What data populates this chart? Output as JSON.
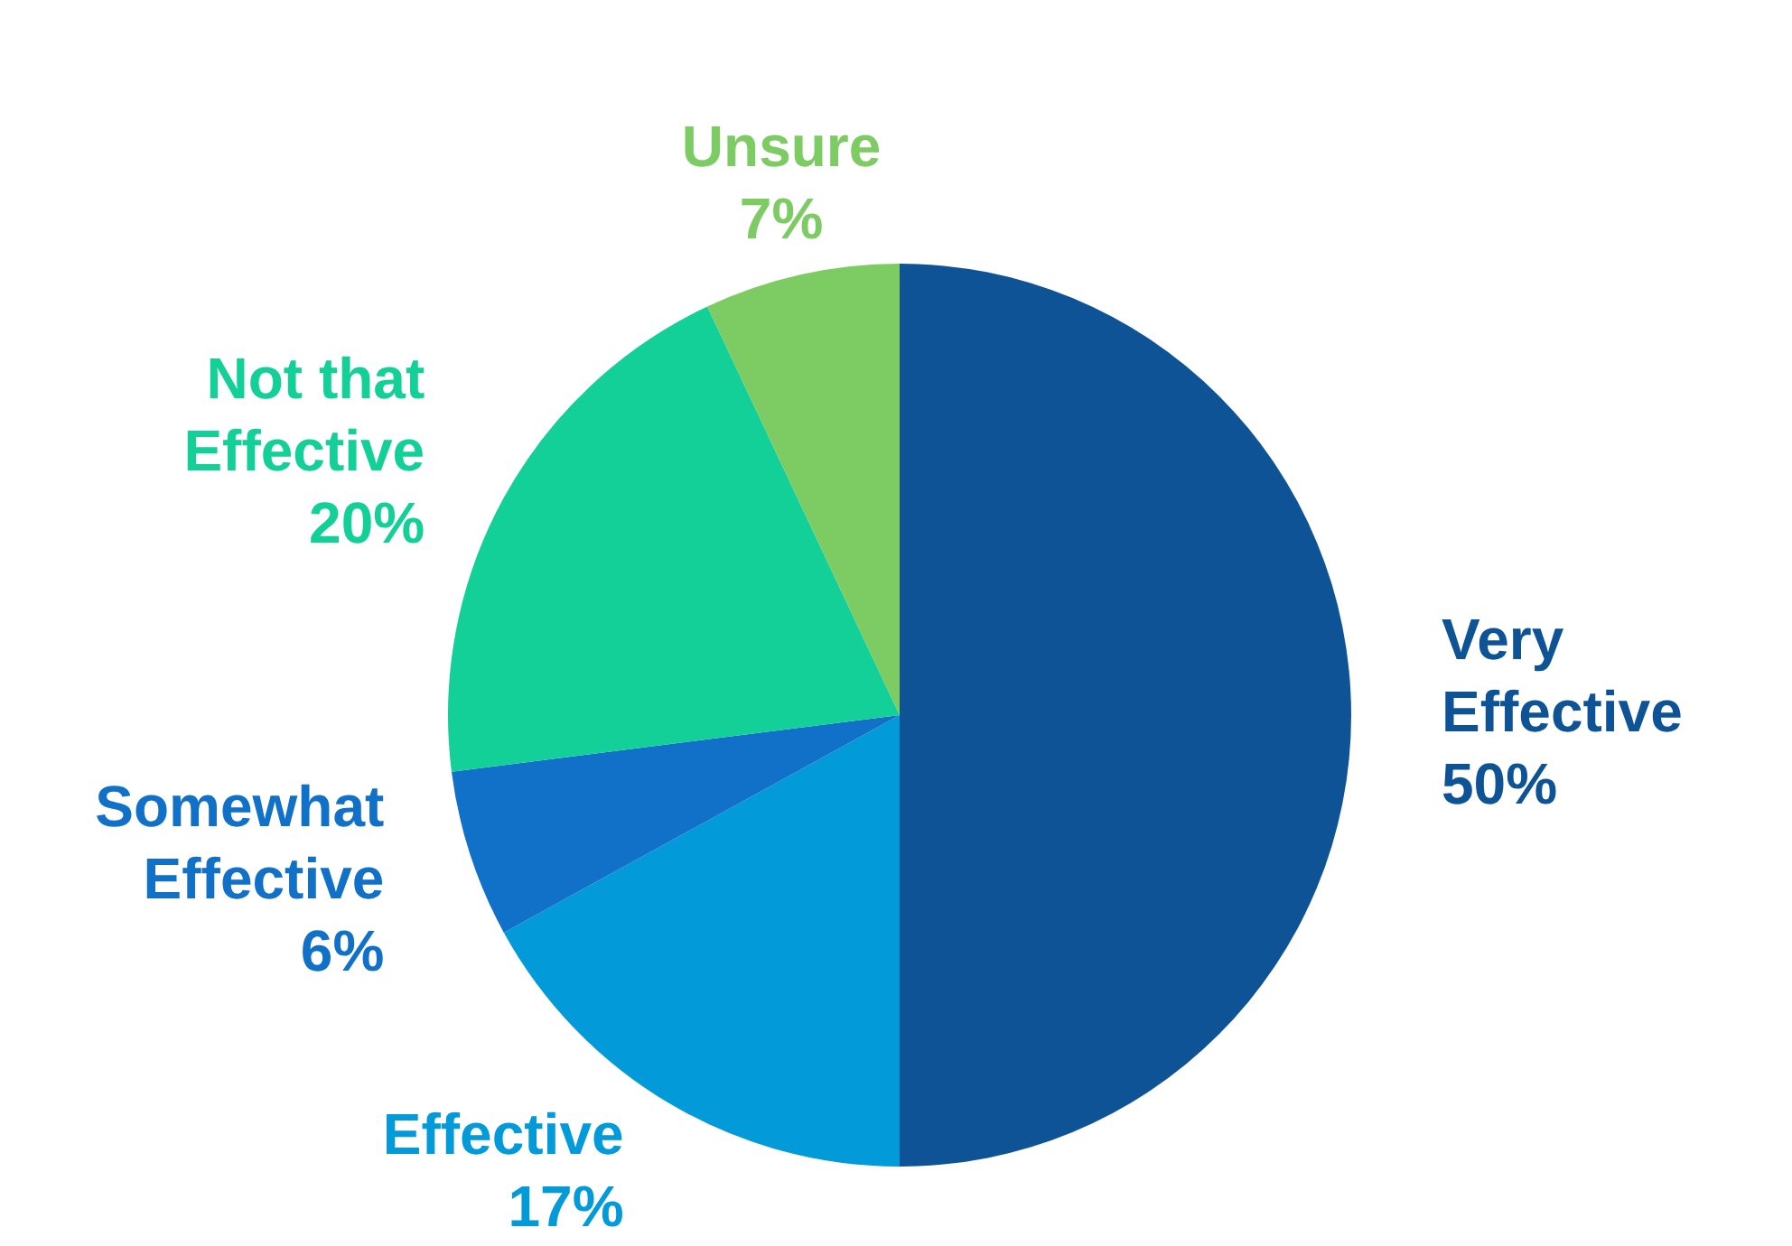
{
  "chart_data": {
    "type": "pie",
    "categories": [
      "Very Effective",
      "Effective",
      "Somewhat Effective",
      "Not that Effective",
      "Unsure"
    ],
    "values": [
      50,
      17,
      6,
      20,
      7
    ],
    "value_labels": [
      "50%",
      "17%",
      "6%",
      "20%",
      "7%"
    ],
    "colors": [
      "#0d5396",
      "#029ad8",
      "#1170c8",
      "#13cf98",
      "#7dcb63"
    ],
    "legend": false
  }
}
